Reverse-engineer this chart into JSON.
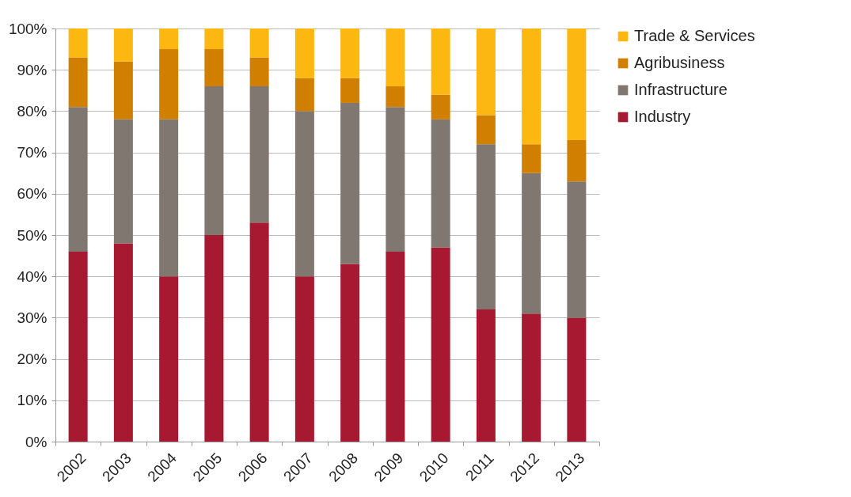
{
  "chart_data": {
    "type": "bar",
    "stacked": true,
    "categories": [
      "2002",
      "2003",
      "2004",
      "2005",
      "2006",
      "2007",
      "2008",
      "2009",
      "2010",
      "2011",
      "2012",
      "2013"
    ],
    "series": [
      {
        "name": "Industry",
        "color": "#a71930",
        "values": [
          46,
          48,
          40,
          50,
          53,
          40,
          43,
          46,
          47,
          32,
          31,
          30
        ]
      },
      {
        "name": "Infrastructure",
        "color": "#7f7770",
        "values": [
          35,
          30,
          38,
          36,
          33,
          40,
          39,
          35,
          31,
          40,
          34,
          33
        ]
      },
      {
        "name": "Agribusiness",
        "color": "#d07f00",
        "values": [
          12,
          14,
          17,
          9,
          7,
          8,
          6,
          5,
          6,
          7,
          7,
          10
        ]
      },
      {
        "name": "Trade & Services",
        "color": "#fcb711",
        "values": [
          7,
          8,
          5,
          5,
          7,
          12,
          12,
          14,
          16,
          21,
          28,
          27
        ]
      }
    ],
    "ylim": [
      0,
      100
    ],
    "yticks": [
      {
        "value": 0,
        "label": "0%"
      },
      {
        "value": 10,
        "label": "10%"
      },
      {
        "value": 20,
        "label": "20%"
      },
      {
        "value": 30,
        "label": "30%"
      },
      {
        "value": 40,
        "label": "40%"
      },
      {
        "value": 50,
        "label": "50%"
      },
      {
        "value": 60,
        "label": "60%"
      },
      {
        "value": 70,
        "label": "70%"
      },
      {
        "value": 80,
        "label": "80%"
      },
      {
        "value": 90,
        "label": "90%"
      },
      {
        "value": 100,
        "label": "100%"
      }
    ],
    "grid": "y",
    "legend": "right"
  }
}
